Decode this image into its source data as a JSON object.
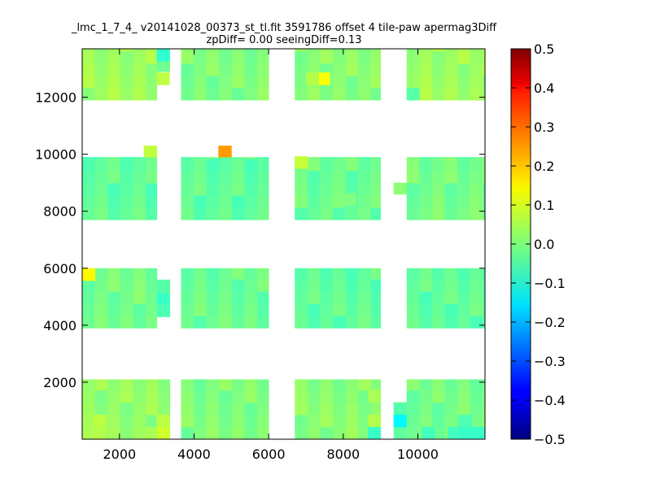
{
  "chart_data": {
    "type": "heatmap",
    "title": "_lmc_1_7_4_ v20141028_00373_st_tl.fit 3591786 offset 4 tile-paw apermag3Diff",
    "subtitle": "zpDiff= 0.00 seeingDiff=0.13",
    "xlim": [
      1000,
      11800
    ],
    "ylim": [
      0,
      13700
    ],
    "x_ticks": [
      2000,
      4000,
      6000,
      8000,
      10000
    ],
    "y_ticks": [
      2000,
      4000,
      6000,
      8000,
      10000,
      12000
    ],
    "colorbar": {
      "colormap": "jet",
      "vmin": -0.5,
      "vmax": 0.5,
      "ticks": [
        "0.5",
        "0.4",
        "0.3",
        "0.2",
        "0.1",
        "0.0",
        "−0.1",
        "−0.2",
        "−0.3",
        "−0.4",
        "−0.5"
      ]
    },
    "cell_size": [
      340,
      430
    ],
    "background_value": -0.02,
    "regions": [
      {
        "x": [
          1000,
          3000
        ],
        "y": [
          11900,
          13700
        ],
        "value": 0.03
      },
      {
        "x": [
          3000,
          3350
        ],
        "y": [
          12900,
          13700
        ],
        "value": 0.0
      },
      {
        "x": [
          3650,
          6000
        ],
        "y": [
          11900,
          13700
        ],
        "value": 0.0
      },
      {
        "x": [
          6700,
          9000
        ],
        "y": [
          11900,
          13700
        ],
        "value": 0.01
      },
      {
        "x": [
          9700,
          11800
        ],
        "y": [
          11900,
          13700
        ],
        "value": 0.03
      },
      {
        "x": [
          1000,
          3000
        ],
        "y": [
          7700,
          9900
        ],
        "value": -0.03
      },
      {
        "x": [
          2650,
          3000
        ],
        "y": [
          9900,
          10300
        ],
        "value": 0.05
      },
      {
        "x": [
          3650,
          6000
        ],
        "y": [
          7700,
          9900
        ],
        "value": -0.03
      },
      {
        "x": [
          4650,
          5000
        ],
        "y": [
          9900,
          10300
        ],
        "value": 0.2
      },
      {
        "x": [
          6700,
          9000
        ],
        "y": [
          7700,
          9900
        ],
        "value": -0.02
      },
      {
        "x": [
          9350,
          9700
        ],
        "y": [
          8600,
          9000
        ],
        "value": 0.03
      },
      {
        "x": [
          9700,
          11800
        ],
        "y": [
          7700,
          9900
        ],
        "value": -0.01
      },
      {
        "x": [
          1000,
          3000
        ],
        "y": [
          3900,
          6000
        ],
        "value": -0.01
      },
      {
        "x": [
          3000,
          3350
        ],
        "y": [
          4300,
          5600
        ],
        "value": -0.03
      },
      {
        "x": [
          3650,
          6000
        ],
        "y": [
          3900,
          6000
        ],
        "value": -0.02
      },
      {
        "x": [
          6700,
          9000
        ],
        "y": [
          3900,
          6000
        ],
        "value": -0.03
      },
      {
        "x": [
          9700,
          11800
        ],
        "y": [
          3900,
          6000
        ],
        "value": -0.03
      },
      {
        "x": [
          1000,
          3350
        ],
        "y": [
          0,
          2100
        ],
        "value": 0.02
      },
      {
        "x": [
          3650,
          6000
        ],
        "y": [
          0,
          2100
        ],
        "value": 0.0
      },
      {
        "x": [
          6700,
          9000
        ],
        "y": [
          0,
          2100
        ],
        "value": 0.01
      },
      {
        "x": [
          9350,
          9700
        ],
        "y": [
          0,
          1300
        ],
        "value": -0.02
      },
      {
        "x": [
          9700,
          11800
        ],
        "y": [
          0,
          2100
        ],
        "value": -0.01
      }
    ],
    "highlight_cells": [
      {
        "x": 3000,
        "y": 13270,
        "value": -0.08
      },
      {
        "x": 3000,
        "y": 12440,
        "value": 0.06
      },
      {
        "x": 7300,
        "y": 12440,
        "value": 0.12
      },
      {
        "x": 7000,
        "y": 12440,
        "value": 0.05
      },
      {
        "x": 6700,
        "y": 9500,
        "value": 0.07
      },
      {
        "x": 8000,
        "y": 8200,
        "value": 0.0
      },
      {
        "x": 1000,
        "y": 5570,
        "value": 0.13
      },
      {
        "x": 3000,
        "y": 4700,
        "value": -0.07
      },
      {
        "x": 3000,
        "y": 4300,
        "value": -0.05
      },
      {
        "x": 3000,
        "y": 0,
        "value": 0.08
      },
      {
        "x": 3000,
        "y": 430,
        "value": 0.06
      },
      {
        "x": 1300,
        "y": 430,
        "value": 0.06
      },
      {
        "x": 1300,
        "y": 0,
        "value": 0.05
      },
      {
        "x": 8660,
        "y": 430,
        "value": 0.05
      },
      {
        "x": 8660,
        "y": 1300,
        "value": 0.04
      },
      {
        "x": 8660,
        "y": 0,
        "value": -0.07
      },
      {
        "x": 9350,
        "y": 430,
        "value": -0.13
      },
      {
        "x": 10100,
        "y": 0,
        "value": -0.06
      },
      {
        "x": 10800,
        "y": 0,
        "value": -0.06
      },
      {
        "x": 11100,
        "y": 0,
        "value": -0.07
      },
      {
        "x": 11440,
        "y": 0,
        "value": -0.07
      },
      {
        "x": 11100,
        "y": 430,
        "value": -0.05
      },
      {
        "x": 9700,
        "y": 11900,
        "value": -0.04
      },
      {
        "x": 2650,
        "y": 0,
        "value": 0.04
      }
    ]
  }
}
